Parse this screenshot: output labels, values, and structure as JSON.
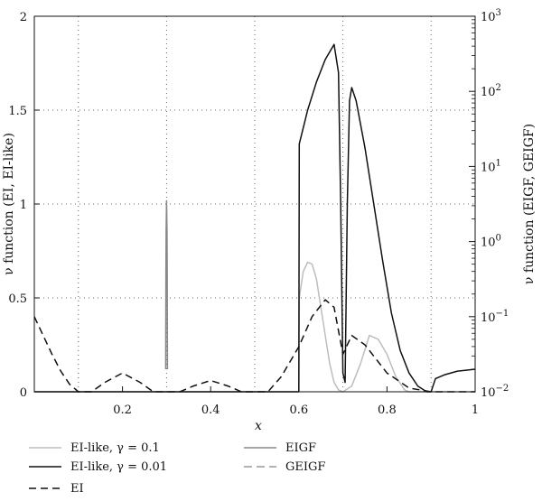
{
  "chart_data": {
    "type": "line",
    "xlabel": "x",
    "ylabel_left": "ν function (EI, EI-like)",
    "ylabel_right": "ν function (EIGF, GEIGF)",
    "xlim": [
      0,
      1
    ],
    "ylim_left": [
      0,
      2
    ],
    "ylim_right": [
      0.01,
      1000
    ],
    "right_scale": "log",
    "grid": "dotted",
    "x_ticks": [
      0.2,
      0.4,
      0.6,
      0.8,
      1
    ],
    "x_tick_labels": [
      "0.2",
      "0.4",
      "0.6",
      "0.8",
      "1"
    ],
    "x_grid": [
      0.1,
      0.3,
      0.5,
      0.7,
      0.9
    ],
    "y_left_ticks": [
      0,
      0.5,
      1,
      1.5,
      2
    ],
    "y_left_tick_labels": [
      "0",
      "0.5",
      "1",
      "1.5",
      "2"
    ],
    "y_right_ticks": [
      0.01,
      0.1,
      1,
      10,
      100,
      1000
    ],
    "y_right_tick_bases": [
      "10",
      "10",
      "10",
      "10",
      "10",
      "10"
    ],
    "y_right_tick_exps": [
      "−2",
      "−1",
      "0",
      "1",
      "2",
      "3"
    ],
    "legend_position": "bottom",
    "series": [
      {
        "name": "EI-like, γ = 0.1",
        "key": "eilike01",
        "axis": "left",
        "color": "#bdbdbd",
        "dash": "solid",
        "points": [
          [
            0,
            0
          ],
          [
            0.6,
            0
          ],
          [
            0.601,
            0.5
          ],
          [
            0.61,
            0.64
          ],
          [
            0.62,
            0.69
          ],
          [
            0.63,
            0.68
          ],
          [
            0.64,
            0.6
          ],
          [
            0.65,
            0.45
          ],
          [
            0.66,
            0.3
          ],
          [
            0.67,
            0.15
          ],
          [
            0.68,
            0.05
          ],
          [
            0.69,
            0.01
          ],
          [
            0.7,
            0
          ],
          [
            0.72,
            0.03
          ],
          [
            0.74,
            0.15
          ],
          [
            0.76,
            0.3
          ],
          [
            0.78,
            0.28
          ],
          [
            0.8,
            0.2
          ],
          [
            0.82,
            0.08
          ],
          [
            0.84,
            0.01
          ],
          [
            0.85,
            0
          ],
          [
            1,
            0
          ]
        ]
      },
      {
        "name": "EI-like, γ = 0.01",
        "key": "eilike001",
        "axis": "left",
        "color": "#111111",
        "dash": "solid",
        "points": [
          [
            0,
            0
          ],
          [
            0.6,
            0
          ],
          [
            0.601,
            1.32
          ],
          [
            0.62,
            1.5
          ],
          [
            0.64,
            1.65
          ],
          [
            0.66,
            1.77
          ],
          [
            0.68,
            1.85
          ],
          [
            0.69,
            1.7
          ],
          [
            0.695,
            1.0
          ],
          [
            0.7,
            0.1
          ],
          [
            0.705,
            0.05
          ],
          [
            0.71,
            1.0
          ],
          [
            0.715,
            1.55
          ],
          [
            0.72,
            1.62
          ],
          [
            0.73,
            1.55
          ],
          [
            0.75,
            1.3
          ],
          [
            0.77,
            1.0
          ],
          [
            0.79,
            0.7
          ],
          [
            0.81,
            0.42
          ],
          [
            0.83,
            0.22
          ],
          [
            0.85,
            0.1
          ],
          [
            0.87,
            0.03
          ],
          [
            0.89,
            0
          ],
          [
            0.9,
            0
          ],
          [
            0.91,
            0.07
          ],
          [
            0.93,
            0.09
          ],
          [
            0.96,
            0.11
          ],
          [
            1,
            0.12
          ]
        ]
      },
      {
        "name": "EI",
        "key": "ei",
        "axis": "left",
        "color": "#111111",
        "dash": "8,5",
        "points": [
          [
            0,
            0.4
          ],
          [
            0.02,
            0.3
          ],
          [
            0.04,
            0.2
          ],
          [
            0.06,
            0.11
          ],
          [
            0.08,
            0.04
          ],
          [
            0.1,
            0
          ],
          [
            0.13,
            0
          ],
          [
            0.16,
            0.05
          ],
          [
            0.2,
            0.1
          ],
          [
            0.24,
            0.05
          ],
          [
            0.27,
            0
          ],
          [
            0.3,
            0
          ],
          [
            0.33,
            0
          ],
          [
            0.36,
            0.03
          ],
          [
            0.4,
            0.06
          ],
          [
            0.44,
            0.03
          ],
          [
            0.47,
            0
          ],
          [
            0.5,
            0
          ],
          [
            0.53,
            0
          ],
          [
            0.56,
            0.08
          ],
          [
            0.6,
            0.24
          ],
          [
            0.63,
            0.4
          ],
          [
            0.66,
            0.49
          ],
          [
            0.68,
            0.45
          ],
          [
            0.7,
            0.2
          ],
          [
            0.72,
            0.3
          ],
          [
            0.75,
            0.25
          ],
          [
            0.8,
            0.1
          ],
          [
            0.85,
            0.02
          ],
          [
            0.9,
            0
          ],
          [
            1,
            0
          ]
        ]
      },
      {
        "name": "EIGF",
        "key": "eigf",
        "axis": "right",
        "color": "#888888",
        "dash": "solid",
        "points": [
          [
            0.298,
            0.02
          ],
          [
            0.2985,
            0.35
          ],
          [
            0.299,
            1.4
          ],
          [
            0.3,
            3.5
          ],
          [
            0.301,
            1.4
          ],
          [
            0.3015,
            0.35
          ],
          [
            0.302,
            0.02
          ]
        ]
      },
      {
        "name": "GEIGF",
        "key": "geigf",
        "axis": "right",
        "color": "#999999",
        "dash": "9,5",
        "points": []
      }
    ]
  }
}
